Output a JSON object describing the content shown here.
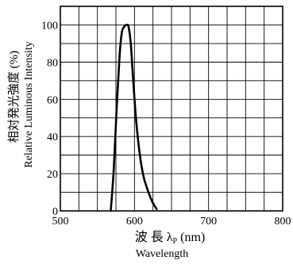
{
  "chart_data": {
    "type": "line",
    "xlabel": "波 長 λ",
    "xlabel_subscript": "P",
    "xlabel_unit": "(nm)",
    "xlabel_en": "Wavelength",
    "ylabel": "相対発光強度 (%)",
    "ylabel_en": "Relative Luminous Intensity",
    "xlim": [
      500,
      800
    ],
    "ylim": [
      0,
      110
    ],
    "x_ticks": [
      500,
      600,
      700,
      800
    ],
    "y_ticks": [
      0,
      20,
      40,
      60,
      80,
      100
    ],
    "grid": true,
    "grid_x_step": 25,
    "grid_y_step": 10,
    "series": [
      {
        "x": [
          568,
          572,
          576,
          580,
          583,
          586,
          589,
          592,
          595,
          598,
          602,
          607,
          612,
          618,
          624,
          630
        ],
        "y": [
          0,
          22,
          55,
          84,
          96,
          99,
          100,
          99,
          90,
          72,
          50,
          31,
          19,
          11,
          5,
          1
        ],
        "color": "#000000"
      }
    ]
  }
}
